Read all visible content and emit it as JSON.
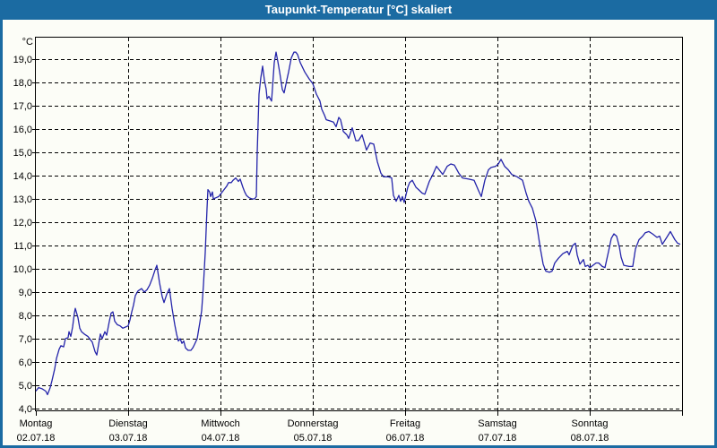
{
  "window": {
    "title": "Taupunkt-Temperatur [°C] skaliert",
    "colors": {
      "frame": "#1b6ba2",
      "title_text": "#ffffff",
      "background": "#fcfdf7",
      "grid": "#000000",
      "axis": "#000000",
      "line": "#2424aa"
    }
  },
  "chart_data": {
    "type": "line",
    "title": "Taupunkt-Temperatur [°C] skaliert",
    "ylabel": "°C",
    "xlabel": "",
    "ylim": [
      4,
      19.9
    ],
    "grid": "dashed",
    "legend": "none",
    "y_tick_values": [
      19,
      18,
      17,
      16,
      15,
      14,
      13,
      12,
      11,
      10,
      9,
      8,
      7,
      6,
      5,
      4
    ],
    "y_tick_labels": [
      "19,0",
      "18,0",
      "17,0",
      "16,0",
      "15,0",
      "14,0",
      "13,0",
      "12,0",
      "11,0",
      "10,0",
      "9,0",
      "8,0",
      "7,0",
      "6,0",
      "5,0",
      "4,0"
    ],
    "x_axis": {
      "unit": "days since Monday 02.07.18 00:00",
      "range_days": [
        0,
        7
      ],
      "gridlines_at_day_boundaries": true,
      "day_labels": [
        {
          "name": "Montag",
          "date": "02.07.18"
        },
        {
          "name": "Dienstag",
          "date": "03.07.18"
        },
        {
          "name": "Mittwoch",
          "date": "04.07.18"
        },
        {
          "name": "Donnerstag",
          "date": "05.07.18"
        },
        {
          "name": "Freitag",
          "date": "06.07.18"
        },
        {
          "name": "Samstag",
          "date": "07.07.18"
        },
        {
          "name": "Sonntag",
          "date": "08.07.18"
        }
      ]
    },
    "series": [
      {
        "name": "Taupunkt-Temperatur",
        "color": "#2424aa",
        "points": [
          [
            0.0,
            4.75
          ],
          [
            0.029,
            4.9
          ],
          [
            0.068,
            4.85
          ],
          [
            0.107,
            4.75
          ],
          [
            0.126,
            4.6
          ],
          [
            0.155,
            4.9
          ],
          [
            0.175,
            5.2
          ],
          [
            0.204,
            5.7
          ],
          [
            0.223,
            6.15
          ],
          [
            0.252,
            6.55
          ],
          [
            0.272,
            6.7
          ],
          [
            0.301,
            6.65
          ],
          [
            0.32,
            7.0
          ],
          [
            0.35,
            7.05
          ],
          [
            0.359,
            7.3
          ],
          [
            0.379,
            7.1
          ],
          [
            0.398,
            7.5
          ],
          [
            0.417,
            8.1
          ],
          [
            0.427,
            8.3
          ],
          [
            0.456,
            7.9
          ],
          [
            0.476,
            7.45
          ],
          [
            0.495,
            7.3
          ],
          [
            0.524,
            7.2
          ],
          [
            0.563,
            7.1
          ],
          [
            0.592,
            6.95
          ],
          [
            0.612,
            6.85
          ],
          [
            0.641,
            6.45
          ],
          [
            0.66,
            6.3
          ],
          [
            0.68,
            6.75
          ],
          [
            0.699,
            7.2
          ],
          [
            0.718,
            7.0
          ],
          [
            0.748,
            7.3
          ],
          [
            0.767,
            7.15
          ],
          [
            0.796,
            7.75
          ],
          [
            0.816,
            8.1
          ],
          [
            0.835,
            8.15
          ],
          [
            0.854,
            7.75
          ],
          [
            0.883,
            7.6
          ],
          [
            0.913,
            7.55
          ],
          [
            0.942,
            7.45
          ],
          [
            0.971,
            7.5
          ],
          [
            1.0,
            7.55
          ],
          [
            1.019,
            7.8
          ],
          [
            1.039,
            8.15
          ],
          [
            1.058,
            8.45
          ],
          [
            1.078,
            8.85
          ],
          [
            1.107,
            9.05
          ],
          [
            1.146,
            9.15
          ],
          [
            1.175,
            9.0
          ],
          [
            1.204,
            9.1
          ],
          [
            1.233,
            9.3
          ],
          [
            1.262,
            9.6
          ],
          [
            1.291,
            9.95
          ],
          [
            1.311,
            10.15
          ],
          [
            1.34,
            9.4
          ],
          [
            1.369,
            8.8
          ],
          [
            1.388,
            8.55
          ],
          [
            1.417,
            8.9
          ],
          [
            1.447,
            9.15
          ],
          [
            1.476,
            8.3
          ],
          [
            1.505,
            7.6
          ],
          [
            1.524,
            7.2
          ],
          [
            1.544,
            6.9
          ],
          [
            1.563,
            7.0
          ],
          [
            1.583,
            6.8
          ],
          [
            1.602,
            6.9
          ],
          [
            1.621,
            6.6
          ],
          [
            1.65,
            6.5
          ],
          [
            1.68,
            6.5
          ],
          [
            1.699,
            6.6
          ],
          [
            1.718,
            6.75
          ],
          [
            1.748,
            7.0
          ],
          [
            1.777,
            7.7
          ],
          [
            1.796,
            8.2
          ],
          [
            1.816,
            9.3
          ],
          [
            1.835,
            10.7
          ],
          [
            1.854,
            12.6
          ],
          [
            1.864,
            13.4
          ],
          [
            1.883,
            13.3
          ],
          [
            1.893,
            13.1
          ],
          [
            1.913,
            13.3
          ],
          [
            1.922,
            13.0
          ],
          [
            1.951,
            13.05
          ],
          [
            1.981,
            13.1
          ],
          [
            2.0,
            13.2
          ],
          [
            2.039,
            13.4
          ],
          [
            2.068,
            13.55
          ],
          [
            2.087,
            13.7
          ],
          [
            2.117,
            13.7
          ],
          [
            2.136,
            13.8
          ],
          [
            2.165,
            13.9
          ],
          [
            2.194,
            13.75
          ],
          [
            2.214,
            13.85
          ],
          [
            2.243,
            13.5
          ],
          [
            2.262,
            13.3
          ],
          [
            2.282,
            13.15
          ],
          [
            2.311,
            13.05
          ],
          [
            2.34,
            13.0
          ],
          [
            2.369,
            13.0
          ],
          [
            2.388,
            13.1
          ],
          [
            2.398,
            15.0
          ],
          [
            2.417,
            17.5
          ],
          [
            2.437,
            18.2
          ],
          [
            2.456,
            18.7
          ],
          [
            2.476,
            18.1
          ],
          [
            2.495,
            17.7
          ],
          [
            2.505,
            17.3
          ],
          [
            2.524,
            17.4
          ],
          [
            2.553,
            17.2
          ],
          [
            2.583,
            18.85
          ],
          [
            2.602,
            19.3
          ],
          [
            2.621,
            18.9
          ],
          [
            2.641,
            18.45
          ],
          [
            2.67,
            17.7
          ],
          [
            2.689,
            17.55
          ],
          [
            2.718,
            18.1
          ],
          [
            2.738,
            18.45
          ],
          [
            2.767,
            19.05
          ],
          [
            2.796,
            19.3
          ],
          [
            2.816,
            19.3
          ],
          [
            2.835,
            19.2
          ],
          [
            2.864,
            18.85
          ],
          [
            2.913,
            18.45
          ],
          [
            2.961,
            18.15
          ],
          [
            3.0,
            17.95
          ],
          [
            3.039,
            17.5
          ],
          [
            3.078,
            17.2
          ],
          [
            3.097,
            16.85
          ],
          [
            3.126,
            16.6
          ],
          [
            3.146,
            16.4
          ],
          [
            3.184,
            16.35
          ],
          [
            3.223,
            16.3
          ],
          [
            3.252,
            16.1
          ],
          [
            3.282,
            16.5
          ],
          [
            3.301,
            16.4
          ],
          [
            3.33,
            15.9
          ],
          [
            3.369,
            15.75
          ],
          [
            3.388,
            15.6
          ],
          [
            3.427,
            16.05
          ],
          [
            3.466,
            15.5
          ],
          [
            3.495,
            15.5
          ],
          [
            3.534,
            15.75
          ],
          [
            3.582,
            15.1
          ],
          [
            3.621,
            15.4
          ],
          [
            3.66,
            15.35
          ],
          [
            3.699,
            14.6
          ],
          [
            3.738,
            14.1
          ],
          [
            3.767,
            13.95
          ],
          [
            3.816,
            13.95
          ],
          [
            3.854,
            13.9
          ],
          [
            3.874,
            13.15
          ],
          [
            3.903,
            12.9
          ],
          [
            3.932,
            13.15
          ],
          [
            3.951,
            12.9
          ],
          [
            3.971,
            13.1
          ],
          [
            3.99,
            12.85
          ],
          [
            4.029,
            13.5
          ],
          [
            4.049,
            13.7
          ],
          [
            4.078,
            13.8
          ],
          [
            4.117,
            13.5
          ],
          [
            4.146,
            13.4
          ],
          [
            4.184,
            13.25
          ],
          [
            4.214,
            13.2
          ],
          [
            4.262,
            13.75
          ],
          [
            4.301,
            14.05
          ],
          [
            4.34,
            14.4
          ],
          [
            4.388,
            14.15
          ],
          [
            4.408,
            14.05
          ],
          [
            4.456,
            14.4
          ],
          [
            4.495,
            14.5
          ],
          [
            4.534,
            14.45
          ],
          [
            4.583,
            14.1
          ],
          [
            4.621,
            13.9
          ],
          [
            4.689,
            13.85
          ],
          [
            4.748,
            13.8
          ],
          [
            4.796,
            13.35
          ],
          [
            4.825,
            13.1
          ],
          [
            4.864,
            13.8
          ],
          [
            4.903,
            14.25
          ],
          [
            4.932,
            14.35
          ],
          [
            4.981,
            14.4
          ],
          [
            5.01,
            14.5
          ],
          [
            5.039,
            14.7
          ],
          [
            5.078,
            14.4
          ],
          [
            5.117,
            14.25
          ],
          [
            5.155,
            14.05
          ],
          [
            5.214,
            13.95
          ],
          [
            5.272,
            13.8
          ],
          [
            5.311,
            13.25
          ],
          [
            5.34,
            12.9
          ],
          [
            5.379,
            12.6
          ],
          [
            5.417,
            12.05
          ],
          [
            5.437,
            11.6
          ],
          [
            5.466,
            10.85
          ],
          [
            5.495,
            10.2
          ],
          [
            5.524,
            9.9
          ],
          [
            5.563,
            9.85
          ],
          [
            5.592,
            9.9
          ],
          [
            5.621,
            10.25
          ],
          [
            5.66,
            10.45
          ],
          [
            5.709,
            10.65
          ],
          [
            5.757,
            10.75
          ],
          [
            5.777,
            10.6
          ],
          [
            5.816,
            11.0
          ],
          [
            5.845,
            11.1
          ],
          [
            5.864,
            10.6
          ],
          [
            5.893,
            10.2
          ],
          [
            5.932,
            10.4
          ],
          [
            5.951,
            10.1
          ],
          [
            5.981,
            10.15
          ],
          [
            6.0,
            10.05
          ],
          [
            6.019,
            10.1
          ],
          [
            6.068,
            10.25
          ],
          [
            6.097,
            10.25
          ],
          [
            6.136,
            10.1
          ],
          [
            6.165,
            10.05
          ],
          [
            6.204,
            10.75
          ],
          [
            6.233,
            11.3
          ],
          [
            6.262,
            11.5
          ],
          [
            6.291,
            11.4
          ],
          [
            6.32,
            10.95
          ],
          [
            6.34,
            10.5
          ],
          [
            6.369,
            10.15
          ],
          [
            6.427,
            10.1
          ],
          [
            6.466,
            10.1
          ],
          [
            6.495,
            10.85
          ],
          [
            6.534,
            11.25
          ],
          [
            6.573,
            11.4
          ],
          [
            6.602,
            11.55
          ],
          [
            6.641,
            11.6
          ],
          [
            6.68,
            11.5
          ],
          [
            6.728,
            11.35
          ],
          [
            6.757,
            11.4
          ],
          [
            6.786,
            11.05
          ],
          [
            6.835,
            11.35
          ],
          [
            6.874,
            11.6
          ],
          [
            6.922,
            11.25
          ],
          [
            6.951,
            11.1
          ],
          [
            6.981,
            11.05
          ]
        ]
      }
    ]
  }
}
